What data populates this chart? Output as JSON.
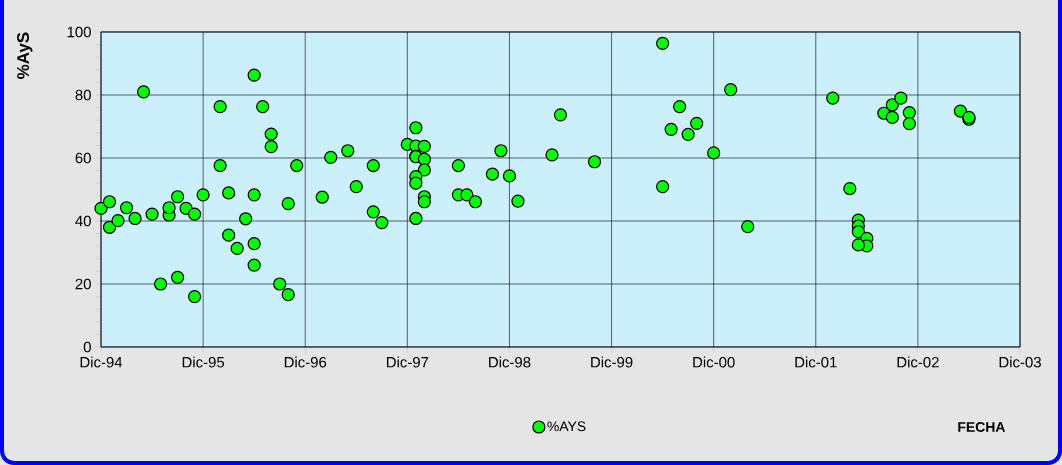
{
  "chart_data": {
    "type": "scatter",
    "xlabel": "FECHA",
    "ylabel": "%AyS",
    "marker": "circle",
    "grid": true,
    "legend": "bottom",
    "xlim": [
      "1994-12",
      "2003-12"
    ],
    "xticks": [
      {
        "value": "1994-12",
        "label": "Dic-94"
      },
      {
        "value": "1995-12",
        "label": "Dic-95"
      },
      {
        "value": "1996-12",
        "label": "Dic-96"
      },
      {
        "value": "1997-12",
        "label": "Dic-97"
      },
      {
        "value": "1998-12",
        "label": "Dic-98"
      },
      {
        "value": "1999-12",
        "label": "Dic-99"
      },
      {
        "value": "2000-12",
        "label": "Dic-00"
      },
      {
        "value": "2001-12",
        "label": "Dic-01"
      },
      {
        "value": "2002-12",
        "label": "Dic-02"
      },
      {
        "value": "2003-12",
        "label": "Dic-03"
      }
    ],
    "ylim": [
      0,
      100
    ],
    "yticks": [
      0,
      20,
      40,
      60,
      80,
      100
    ],
    "series": [
      {
        "name": "%AYS",
        "color": "#00ff00",
        "x": [
          "1994-12",
          "1995-01",
          "1995-01",
          "1995-02",
          "1995-03",
          "1995-04",
          "1995-05",
          "1995-06",
          "1995-07",
          "1995-08",
          "1995-08",
          "1995-09",
          "1995-09",
          "1995-10",
          "1995-11",
          "1995-11",
          "1995-12",
          "1996-02",
          "1996-02",
          "1996-03",
          "1996-03",
          "1996-04",
          "1996-05",
          "1996-06",
          "1996-06",
          "1996-06",
          "1996-07",
          "1996-06",
          "1996-08",
          "1996-08",
          "1996-09",
          "1996-10",
          "1996-10",
          "1996-11",
          "1997-02",
          "1997-03",
          "1997-05",
          "1997-06",
          "1997-08",
          "1997-08",
          "1997-09",
          "1997-12",
          "1998-01",
          "1998-01",
          "1998-01",
          "1998-02",
          "1998-01",
          "1998-01",
          "1998-02",
          "1998-02",
          "1998-01",
          "1998-01",
          "1998-02",
          "1998-02",
          "1998-06",
          "1998-06",
          "1998-07",
          "1998-08",
          "1998-10",
          "1998-11",
          "1998-12",
          "1999-01",
          "1999-05",
          "1999-06",
          "1999-10",
          "2000-06",
          "2000-06",
          "2000-08",
          "2000-07",
          "2000-09",
          "2000-10",
          "2000-12",
          "2001-02",
          "2001-04",
          "2002-02",
          "2002-04",
          "2002-05",
          "2002-05",
          "2002-05",
          "2002-06",
          "2002-06",
          "2002-05",
          "2002-08",
          "2002-09",
          "2002-10",
          "2002-09",
          "2002-11",
          "2002-11",
          "2003-05",
          "2003-06",
          "2003-06"
        ],
        "values": [
          44.0,
          38.0,
          46.1,
          40.1,
          44.2,
          40.8,
          81.0,
          42.2,
          20.0,
          41.9,
          44.2,
          22.1,
          47.7,
          44.0,
          16.0,
          42.2,
          48.3,
          76.3,
          57.6,
          48.9,
          35.5,
          31.3,
          40.7,
          32.8,
          26.0,
          86.3,
          76.3,
          48.3,
          67.6,
          63.6,
          20.0,
          16.6,
          45.5,
          57.6,
          47.6,
          60.2,
          62.3,
          50.9,
          42.9,
          57.6,
          39.5,
          64.3,
          69.6,
          40.8,
          63.8,
          63.7,
          60.6,
          60.4,
          59.6,
          56.2,
          54.1,
          52.0,
          47.7,
          46.1,
          57.6,
          48.3,
          48.3,
          46.1,
          54.9,
          62.3,
          54.3,
          46.3,
          61.0,
          73.7,
          58.8,
          96.4,
          50.9,
          76.3,
          69.1,
          67.5,
          71.0,
          61.6,
          81.7,
          38.2,
          79.0,
          50.3,
          40.3,
          38.4,
          36.6,
          34.5,
          32.1,
          32.4,
          74.2,
          76.9,
          79.0,
          72.9,
          74.4,
          70.9,
          74.9,
          72.3,
          72.9
        ]
      }
    ]
  }
}
